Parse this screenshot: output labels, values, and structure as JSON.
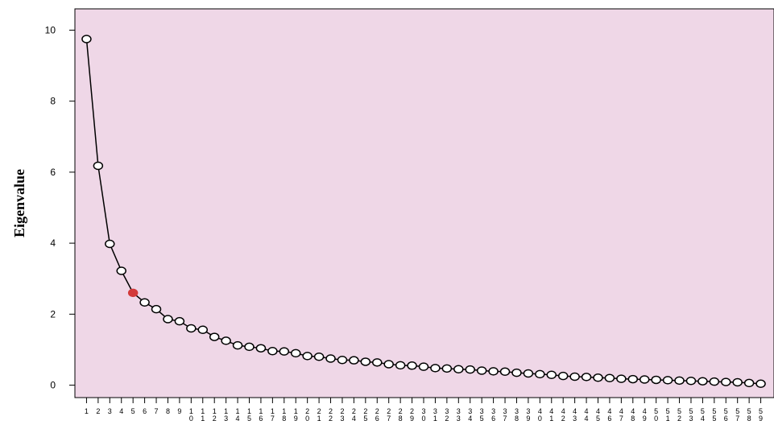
{
  "chart_data": {
    "type": "line",
    "title": "",
    "xlabel": "",
    "ylabel": "Eigenvalue",
    "x": [
      1,
      2,
      3,
      4,
      5,
      6,
      7,
      8,
      9,
      10,
      11,
      12,
      13,
      14,
      15,
      16,
      17,
      18,
      19,
      20,
      21,
      22,
      23,
      24,
      25,
      26,
      27,
      28,
      29,
      30,
      31,
      32,
      33,
      34,
      35,
      36,
      37,
      38,
      39,
      40,
      41,
      42,
      43,
      44,
      45,
      46,
      47,
      48,
      49,
      50,
      51,
      52,
      53,
      54,
      55,
      56,
      57,
      58,
      59
    ],
    "x_tick_labels": [
      "1",
      "2",
      "3",
      "4",
      "5",
      "6",
      "7",
      "8",
      "9",
      "10",
      "11",
      "12",
      "13",
      "14",
      "15",
      "16",
      "17",
      "18",
      "19",
      "20",
      "21",
      "22",
      "23",
      "24",
      "25",
      "26",
      "27",
      "28",
      "29",
      "30",
      "31",
      "32",
      "33",
      "34",
      "35",
      "36",
      "37",
      "38",
      "39",
      "40",
      "41",
      "42",
      "43",
      "44",
      "45",
      "46",
      "47",
      "48",
      "49",
      "50",
      "51",
      "52",
      "53",
      "54",
      "55",
      "56",
      "57",
      "58",
      "59"
    ],
    "series": [
      {
        "values": [
          9.75,
          6.18,
          3.98,
          3.22,
          2.6,
          2.33,
          2.14,
          1.86,
          1.8,
          1.6,
          1.56,
          1.36,
          1.25,
          1.12,
          1.08,
          1.04,
          0.96,
          0.95,
          0.9,
          0.82,
          0.8,
          0.75,
          0.71,
          0.7,
          0.66,
          0.64,
          0.59,
          0.56,
          0.55,
          0.52,
          0.48,
          0.47,
          0.45,
          0.44,
          0.41,
          0.39,
          0.38,
          0.35,
          0.33,
          0.31,
          0.29,
          0.26,
          0.24,
          0.23,
          0.21,
          0.2,
          0.18,
          0.17,
          0.16,
          0.15,
          0.14,
          0.13,
          0.12,
          0.11,
          0.1,
          0.09,
          0.08,
          0.06,
          0.04
        ],
        "highlight_index": 4
      }
    ],
    "y_ticks": [
      0,
      2,
      4,
      6,
      8,
      10
    ],
    "ylim": [
      -0.35,
      10.6
    ],
    "xlim": [
      0,
      60
    ],
    "grid": false,
    "legend": "none",
    "colors": {
      "plot_background": "#efd7e7",
      "line": "#000000",
      "marker_fill": "#ffffff",
      "highlight": "#d23a3a"
    }
  }
}
